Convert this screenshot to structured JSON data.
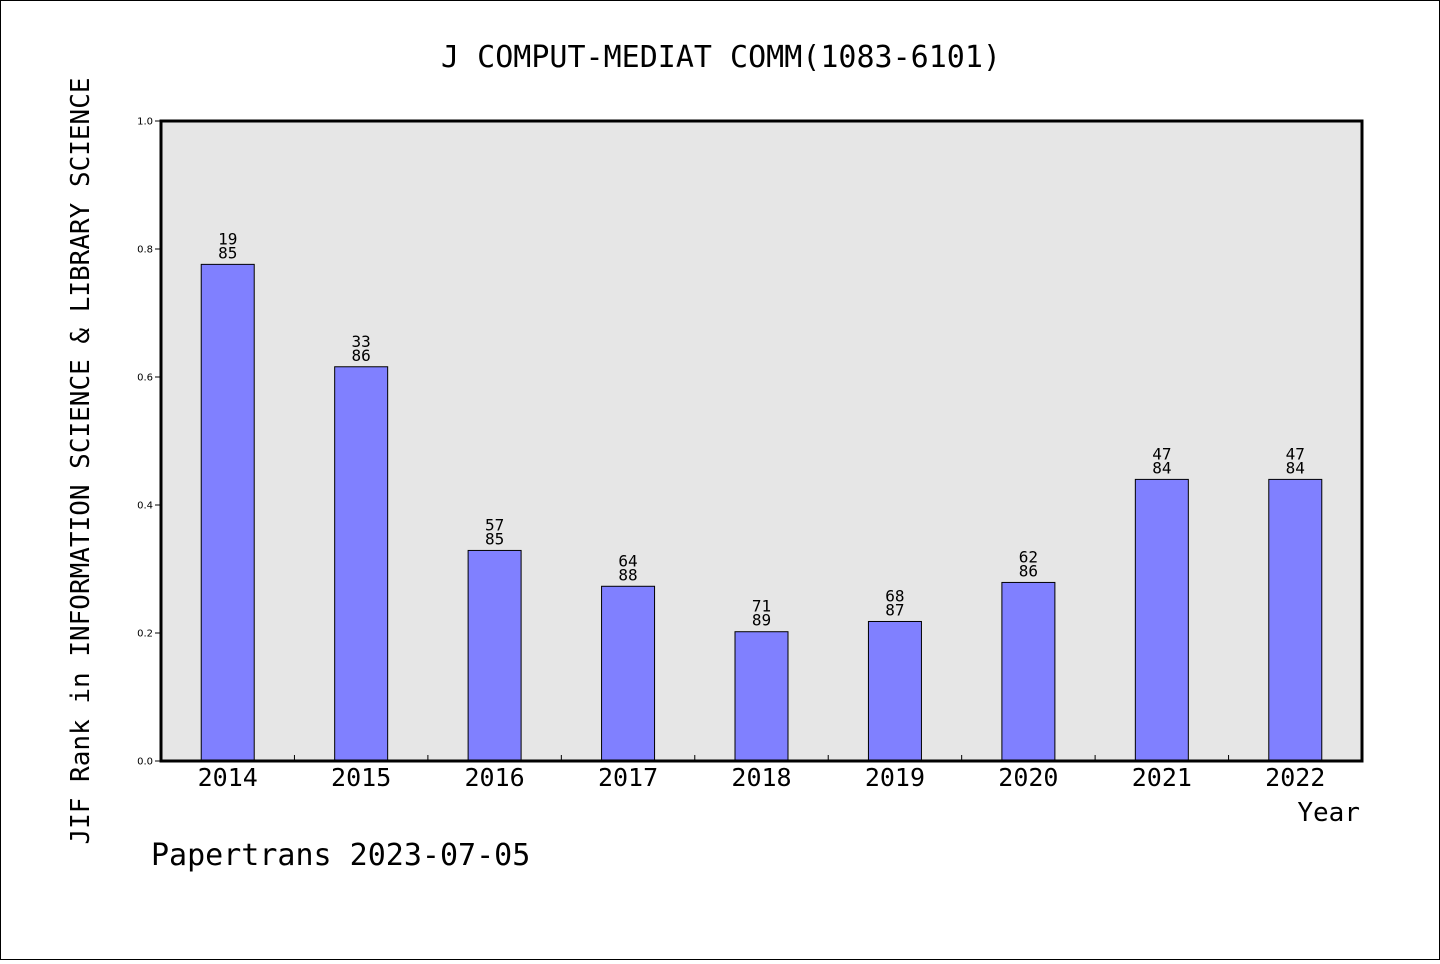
{
  "chart_data": {
    "type": "bar",
    "title": "J COMPUT-MEDIAT COMM(1083-6101)",
    "xlabel": "Year",
    "ylabel": "JIF Rank in INFORMATION SCIENCE & LIBRARY SCIENCE",
    "ylim": [
      0,
      1.0
    ],
    "yticks": [
      "0.0",
      "0.2",
      "0.4",
      "0.6",
      "0.8",
      "1.0"
    ],
    "categories": [
      "2014",
      "2015",
      "2016",
      "2017",
      "2018",
      "2019",
      "2020",
      "2021",
      "2022"
    ],
    "values": [
      0.776,
      0.616,
      0.329,
      0.273,
      0.202,
      0.218,
      0.279,
      0.44,
      0.44
    ],
    "labels": [
      [
        "19",
        "85"
      ],
      [
        "33",
        "86"
      ],
      [
        "57",
        "85"
      ],
      [
        "64",
        "88"
      ],
      [
        "71",
        "89"
      ],
      [
        "68",
        "87"
      ],
      [
        "62",
        "86"
      ],
      [
        "47",
        "84"
      ],
      [
        "47",
        "84"
      ]
    ],
    "bar_color": "#8080ff",
    "plot_background": "#e6e6e6",
    "grid": false,
    "legend": "none"
  },
  "footer": "Papertrans 2023-07-05"
}
